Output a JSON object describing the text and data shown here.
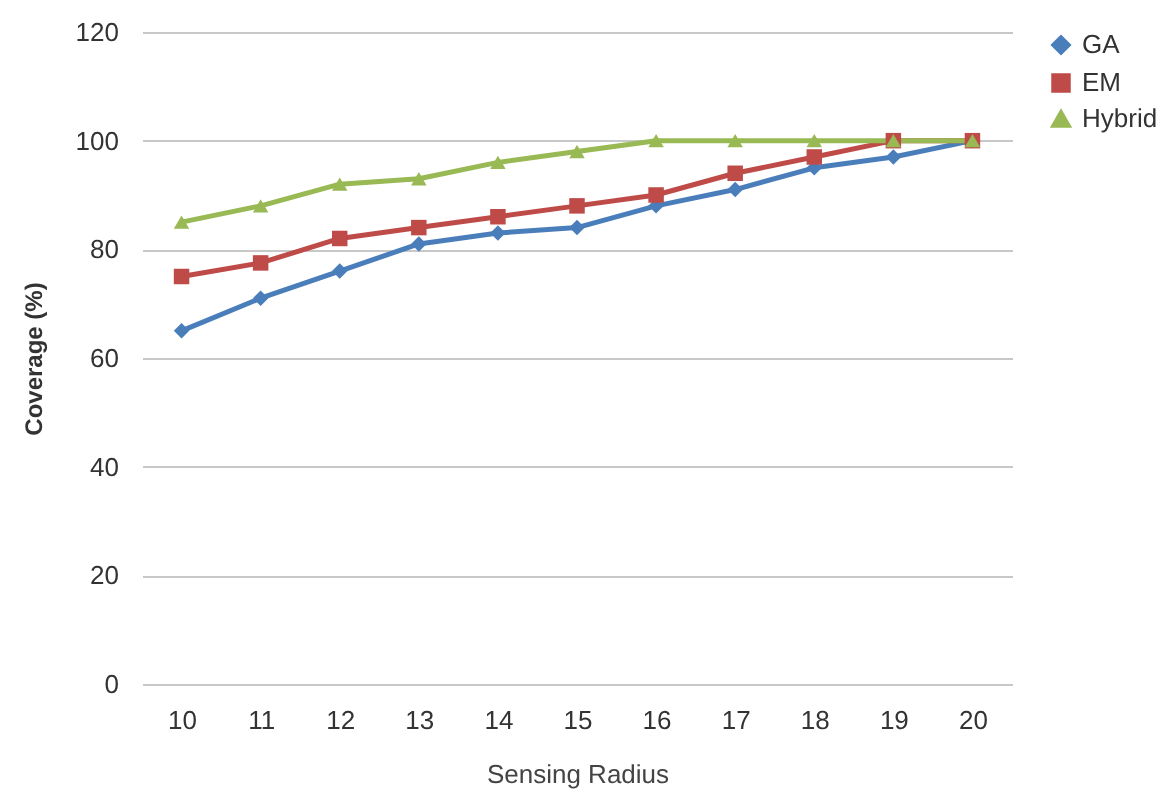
{
  "chart_data": {
    "type": "line",
    "xlabel": "Sensing Radius",
    "ylabel": "Coverage (%)",
    "categories": [
      "10",
      "11",
      "12",
      "13",
      "14",
      "15",
      "16",
      "17",
      "18",
      "19",
      "20"
    ],
    "series": [
      {
        "name": "GA",
        "color": "#4a7ebb",
        "marker": "diamond",
        "values": [
          65,
          71,
          76,
          81,
          83,
          84,
          88,
          91,
          95,
          97,
          100
        ]
      },
      {
        "name": "EM",
        "color": "#be4b48",
        "marker": "square",
        "values": [
          75,
          77.5,
          82,
          84,
          86,
          88,
          90,
          94,
          97,
          100,
          100
        ]
      },
      {
        "name": "Hybrid",
        "color": "#98b954",
        "marker": "triangle",
        "values": [
          85,
          88,
          92,
          93,
          96,
          98,
          100,
          100,
          100,
          100,
          100
        ]
      }
    ],
    "ylim": [
      0,
      120
    ],
    "yticks": [
      0,
      20,
      40,
      60,
      80,
      100,
      120
    ],
    "grid": "y",
    "legend": "right"
  }
}
